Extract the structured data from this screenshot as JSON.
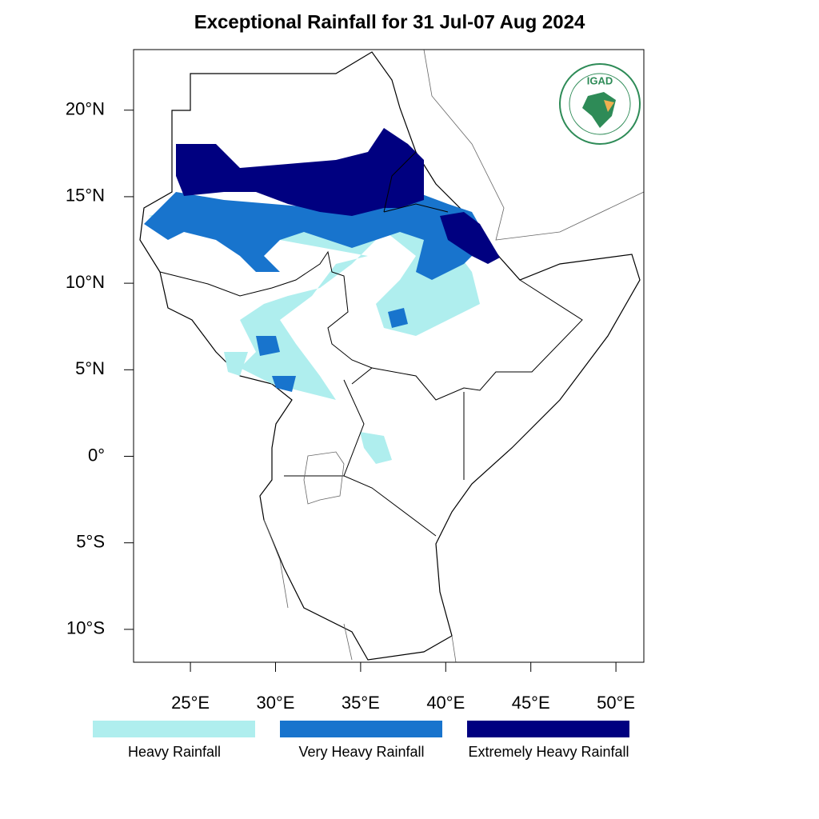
{
  "map": {
    "title": "Exceptional Rainfall for 31 Jul-07 Aug 2024",
    "xlim": [
      21.66,
      51.64
    ],
    "ylim": [
      -11.9,
      23.5
    ],
    "xticks": [
      {
        "value": 25,
        "label": "25°E"
      },
      {
        "value": 30,
        "label": "30°E"
      },
      {
        "value": 35,
        "label": "35°E"
      },
      {
        "value": 40,
        "label": "40°E"
      },
      {
        "value": 45,
        "label": "45°E"
      },
      {
        "value": 50,
        "label": "50°E"
      }
    ],
    "yticks": [
      {
        "value": 20,
        "label": "20°N"
      },
      {
        "value": 15,
        "label": "15°N"
      },
      {
        "value": 10,
        "label": "10°N"
      },
      {
        "value": 5,
        "label": "5°N"
      },
      {
        "value": 0,
        "label": "0°"
      },
      {
        "value": -5,
        "label": "5°S"
      },
      {
        "value": -10,
        "label": "10°S"
      }
    ],
    "legend": [
      {
        "name": "Heavy Rainfall",
        "color": "#afeeee"
      },
      {
        "name": "Very Heavy Rainfall",
        "color": "#1874cd"
      },
      {
        "name": "Extremely Heavy Rainfall",
        "color": "#000080"
      }
    ],
    "logo_text": "IGAD"
  }
}
